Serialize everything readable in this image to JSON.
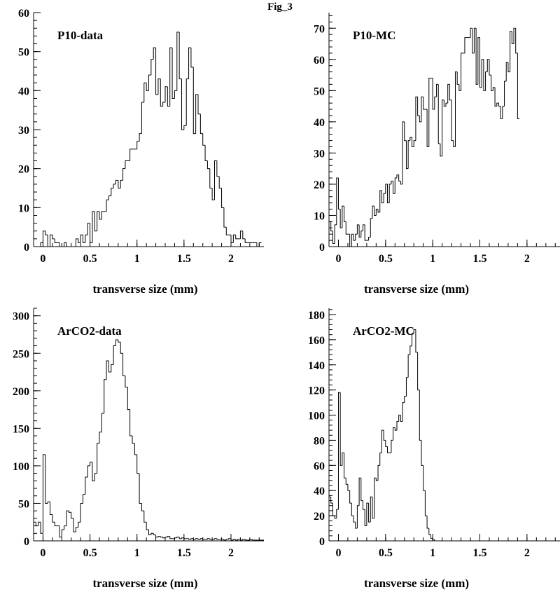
{
  "figure_title": "Fig_3",
  "chart_data": [
    {
      "type": "histogram",
      "title": "P10-data",
      "xlabel": "transverse size (mm)",
      "ylabel": "",
      "xlim": [
        -0.1,
        2.35
      ],
      "ylim": [
        0,
        60
      ],
      "x_ticks": [
        0,
        0.5,
        1,
        1.5,
        2
      ],
      "x_tick_labels": [
        "0",
        "0.5",
        "1",
        "1.5",
        "2"
      ],
      "y_ticks": [
        0,
        10,
        20,
        30,
        40,
        50,
        60
      ],
      "y_tick_labels": [
        "0",
        "10",
        "20",
        "30",
        "40",
        "50",
        "60"
      ],
      "bin_start": -0.05,
      "bin_width": 0.025,
      "values": [
        0,
        1,
        4,
        3,
        0,
        3,
        2,
        1,
        1,
        0,
        0,
        1,
        0,
        0,
        0,
        0,
        2,
        1,
        3,
        1,
        3,
        6,
        1,
        9,
        4,
        9,
        7,
        9,
        9,
        12,
        13,
        15,
        16,
        17,
        15,
        17,
        20,
        22,
        22,
        25,
        25,
        25,
        27,
        29,
        37,
        42,
        40,
        44,
        48,
        51,
        39,
        43,
        36,
        37,
        41,
        36,
        51,
        38,
        40,
        55,
        43,
        30,
        31,
        43,
        51,
        46,
        29,
        39,
        34,
        29,
        26,
        22,
        20,
        15,
        12,
        22,
        18,
        15,
        10,
        5,
        3,
        3,
        1,
        3,
        2,
        2,
        4,
        2,
        1,
        1,
        1,
        1,
        1,
        0,
        1,
        1,
        0,
        1,
        0
      ]
    },
    {
      "type": "histogram",
      "title": "P10-MC",
      "xlabel": "transverse size (mm)",
      "ylabel": "",
      "xlim": [
        -0.1,
        2.35
      ],
      "ylim": [
        0,
        75
      ],
      "x_ticks": [
        0,
        0.5,
        1,
        1.5,
        2
      ],
      "x_tick_labels": [
        "0",
        "0.5",
        "1",
        "1.5",
        "2"
      ],
      "y_ticks": [
        0,
        10,
        20,
        30,
        40,
        50,
        60,
        70
      ],
      "y_tick_labels": [
        "0",
        "10",
        "20",
        "30",
        "40",
        "50",
        "60",
        "70"
      ],
      "bin_start": -0.1,
      "bin_width": 0.02,
      "values": [
        8,
        5,
        1,
        7,
        22,
        12,
        6,
        13,
        8,
        4,
        4,
        0,
        4,
        2,
        4,
        7,
        3,
        5,
        7,
        2,
        2,
        3,
        9,
        13,
        10,
        12,
        11,
        18,
        14,
        17,
        20,
        14,
        20,
        21,
        17,
        22,
        23,
        21,
        20,
        40,
        34,
        25,
        34,
        35,
        32,
        34,
        48,
        42,
        40,
        48,
        44,
        44,
        32,
        54,
        54,
        44,
        48,
        52,
        33,
        29,
        47,
        45,
        46,
        52,
        47,
        34,
        32,
        56,
        52,
        50,
        62,
        62,
        67,
        67,
        67,
        70,
        62,
        70,
        52,
        67,
        51,
        60,
        50,
        56,
        60,
        55,
        50,
        51,
        45,
        46,
        45,
        41,
        45,
        53,
        59,
        56,
        69,
        65,
        70,
        62,
        41
      ]
    },
    {
      "type": "histogram",
      "title": "ArCO2-data",
      "xlabel": "transverse size (mm)",
      "ylabel": "",
      "xlim": [
        -0.1,
        2.35
      ],
      "ylim": [
        0,
        310
      ],
      "x_ticks": [
        0,
        0.5,
        1,
        1.5,
        2
      ],
      "x_tick_labels": [
        "0",
        "0.5",
        "1",
        "1.5",
        "2"
      ],
      "y_ticks": [
        0,
        50,
        100,
        150,
        200,
        250,
        300
      ],
      "y_tick_labels": [
        "0",
        "50",
        "100",
        "150",
        "200",
        "250",
        "300"
      ],
      "bin_start": -0.1,
      "bin_width": 0.025,
      "values": [
        25,
        20,
        25,
        10,
        115,
        50,
        52,
        35,
        25,
        20,
        20,
        5,
        15,
        20,
        40,
        38,
        30,
        12,
        18,
        25,
        50,
        62,
        85,
        100,
        105,
        80,
        90,
        130,
        145,
        170,
        215,
        240,
        225,
        235,
        260,
        268,
        265,
        250,
        220,
        205,
        175,
        140,
        130,
        115,
        90,
        50,
        40,
        25,
        15,
        8,
        10,
        8,
        5,
        6,
        5,
        4,
        5,
        6,
        3,
        3,
        4,
        5,
        3,
        4,
        3,
        3,
        2,
        3,
        2,
        3,
        2,
        3,
        2,
        2,
        3,
        2,
        2,
        3,
        2,
        2,
        2,
        1,
        2,
        3,
        1,
        2,
        1,
        2,
        1,
        2,
        1,
        1,
        2,
        1,
        1,
        1,
        1,
        1
      ]
    },
    {
      "type": "histogram",
      "title": "ArCO2-MC",
      "xlabel": "transverse size (mm)",
      "ylabel": "",
      "xlim": [
        -0.1,
        2.35
      ],
      "ylim": [
        0,
        185
      ],
      "x_ticks": [
        0,
        0.5,
        1,
        1.5,
        2
      ],
      "x_tick_labels": [
        "0",
        "0.5",
        "1",
        "1.5",
        "2"
      ],
      "y_ticks": [
        0,
        20,
        40,
        60,
        80,
        100,
        120,
        140,
        160,
        180
      ],
      "y_tick_labels": [
        "0",
        "20",
        "40",
        "60",
        "80",
        "100",
        "120",
        "140",
        "160",
        "180"
      ],
      "bin_start": -0.1,
      "bin_width": 0.02,
      "values": [
        35,
        30,
        20,
        18,
        25,
        118,
        60,
        70,
        50,
        45,
        40,
        30,
        20,
        15,
        10,
        28,
        50,
        32,
        25,
        12,
        30,
        15,
        35,
        18,
        50,
        48,
        60,
        70,
        88,
        80,
        75,
        70,
        70,
        80,
        90,
        88,
        95,
        100,
        95,
        110,
        115,
        130,
        148,
        155,
        165,
        168,
        150,
        120,
        80,
        60,
        40,
        20,
        10,
        5,
        2,
        1,
        0
      ]
    }
  ]
}
